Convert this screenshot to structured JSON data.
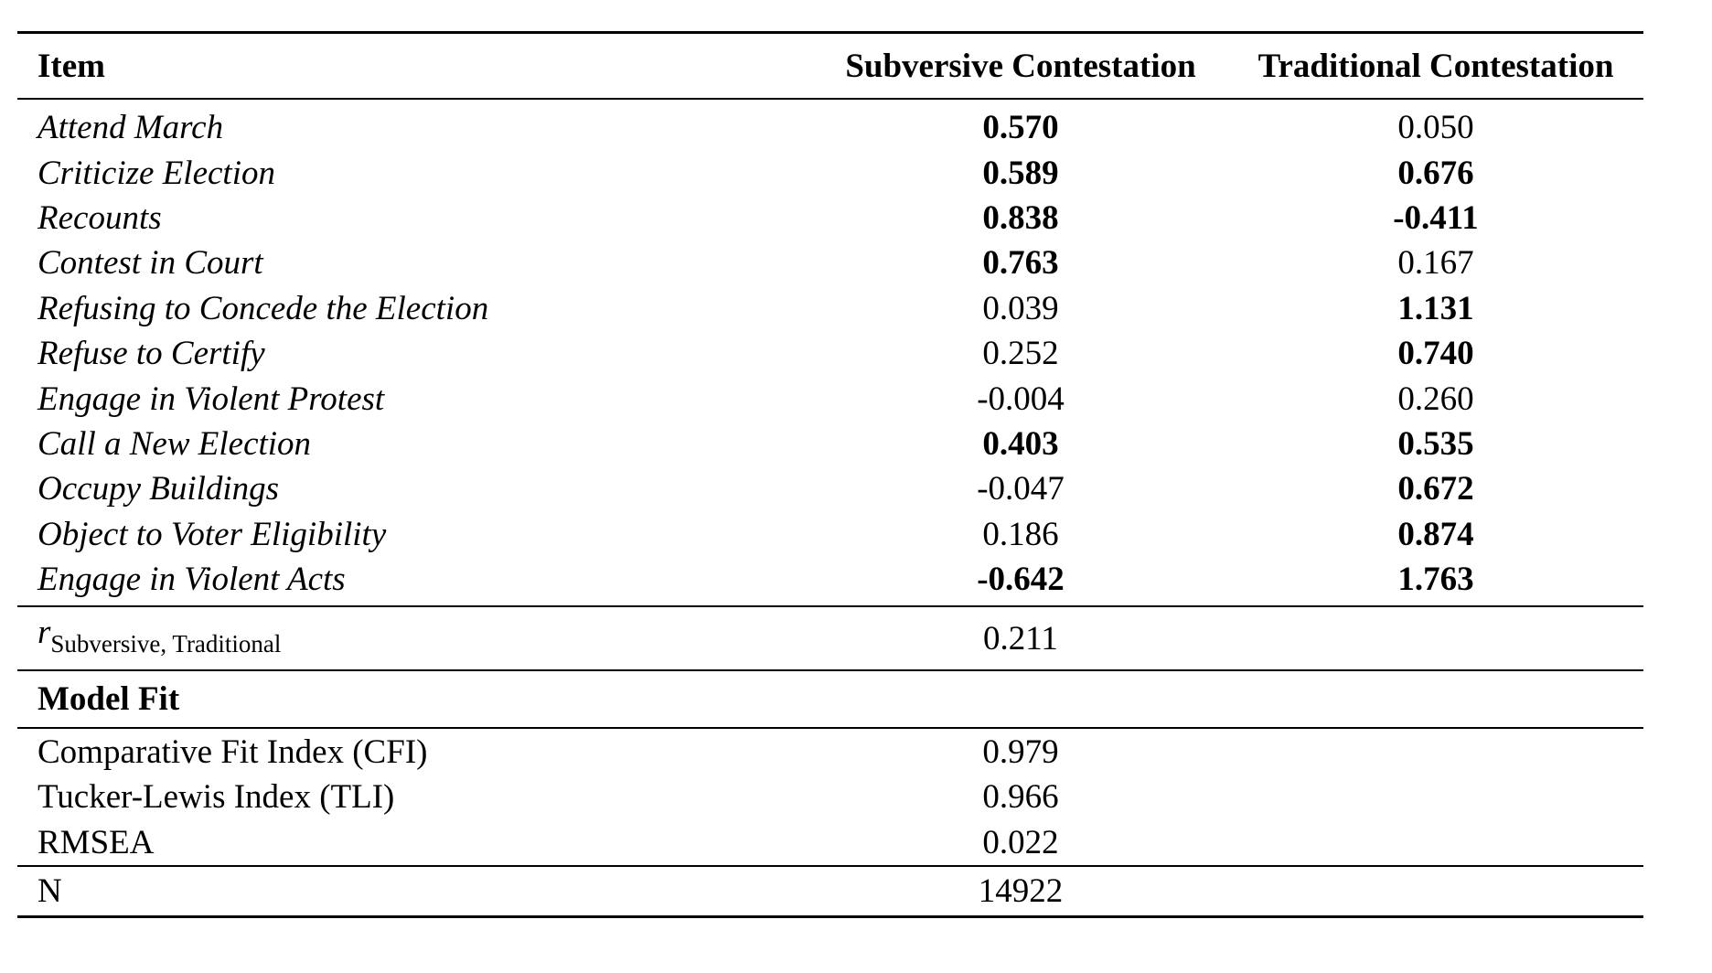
{
  "table": {
    "headers": {
      "item": "Item",
      "subversive": "Subversive Contestation",
      "traditional": "Traditional Contestation"
    },
    "items": [
      {
        "label": "Attend March",
        "subversive": "0.570",
        "subversive_bold": true,
        "traditional": "0.050",
        "traditional_bold": false
      },
      {
        "label": "Criticize Election",
        "subversive": "0.589",
        "subversive_bold": true,
        "traditional": "0.676",
        "traditional_bold": true
      },
      {
        "label": "Recounts",
        "subversive": "0.838",
        "subversive_bold": true,
        "traditional": "-0.411",
        "traditional_bold": true
      },
      {
        "label": "Contest in Court",
        "subversive": "0.763",
        "subversive_bold": true,
        "traditional": "0.167",
        "traditional_bold": false
      },
      {
        "label": "Refusing to Concede the Election",
        "subversive": "0.039",
        "subversive_bold": false,
        "traditional": "1.131",
        "traditional_bold": true
      },
      {
        "label": "Refuse to Certify",
        "subversive": "0.252",
        "subversive_bold": false,
        "traditional": "0.740",
        "traditional_bold": true
      },
      {
        "label": "Engage in Violent Protest",
        "subversive": "-0.004",
        "subversive_bold": false,
        "traditional": "0.260",
        "traditional_bold": false
      },
      {
        "label": "Call a New Election",
        "subversive": "0.403",
        "subversive_bold": true,
        "traditional": "0.535",
        "traditional_bold": true
      },
      {
        "label": "Occupy Buildings",
        "subversive": "-0.047",
        "subversive_bold": false,
        "traditional": "0.672",
        "traditional_bold": true
      },
      {
        "label": "Object to Voter Eligibility",
        "subversive": "0.186",
        "subversive_bold": false,
        "traditional": "0.874",
        "traditional_bold": true
      },
      {
        "label": "Engage in Violent Acts",
        "subversive": "-0.642",
        "subversive_bold": true,
        "traditional": "1.763",
        "traditional_bold": true
      }
    ],
    "correlation": {
      "symbol": "r",
      "subscript": "Subversive, Traditional",
      "value": "0.211"
    },
    "model_fit": {
      "heading": "Model Fit",
      "rows": [
        {
          "label": "Comparative Fit Index (CFI)",
          "value": "0.979"
        },
        {
          "label": "Tucker-Lewis Index (TLI)",
          "value": "0.966"
        },
        {
          "label": "RMSEA",
          "value": "0.022"
        }
      ]
    },
    "n": {
      "label": "N",
      "value": "14922"
    }
  }
}
